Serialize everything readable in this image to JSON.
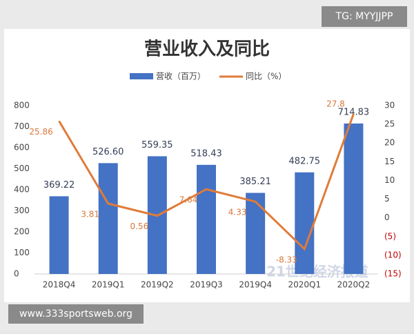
{
  "chart_data": {
    "type": "bar_line",
    "title": "营业收入及同比",
    "categories": [
      "2018Q4",
      "2019Q1",
      "2019Q2",
      "2019Q3",
      "2019Q4",
      "2020Q1",
      "2020Q2"
    ],
    "series": [
      {
        "name": "营收（百万）",
        "type": "bar",
        "color": "#4472c4",
        "values": [
          369.22,
          526.6,
          559.35,
          518.43,
          385.21,
          482.75,
          714.83
        ],
        "value_labels": [
          "369.22",
          "526.60",
          "559.35",
          "518.43",
          "385.21",
          "482.75",
          "714.83"
        ]
      },
      {
        "name": "同比（%）",
        "type": "line",
        "axis": "y2",
        "color": "#e07b39",
        "values": [
          25.86,
          3.81,
          0.56,
          7.64,
          4.33,
          -8.33,
          27.8
        ]
      }
    ],
    "ylim": [
      0,
      800
    ],
    "yticks": [
      0,
      100,
      200,
      300,
      400,
      500,
      600,
      700,
      800
    ],
    "y2lim": [
      -15,
      30
    ],
    "y2ticks": [
      {
        "value": -15,
        "label": "(15)"
      },
      {
        "value": -10,
        "label": "(10)"
      },
      {
        "value": -5,
        "label": "(5)"
      },
      0,
      5,
      10,
      15,
      20,
      25,
      30
    ],
    "annotations": [
      "TG: MYYJJPP",
      "www.333sportsweb.org",
      "21世纪经济报道"
    ]
  }
}
